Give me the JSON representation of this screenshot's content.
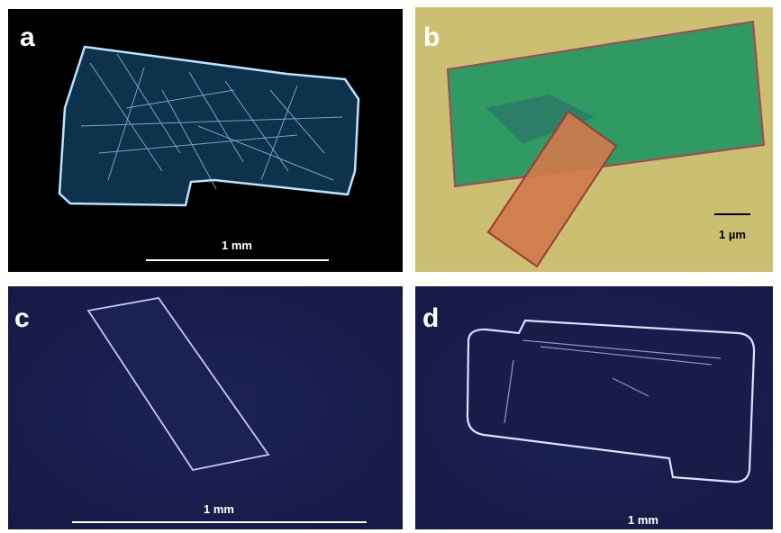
{
  "panels": [
    {
      "label": "a",
      "scale_bar": "1 mm"
    },
    {
      "label": "b",
      "scale_bar": "1 µm"
    },
    {
      "label": "c",
      "scale_bar": "1 mm"
    },
    {
      "label": "d",
      "scale_bar": "1 mm"
    }
  ]
}
